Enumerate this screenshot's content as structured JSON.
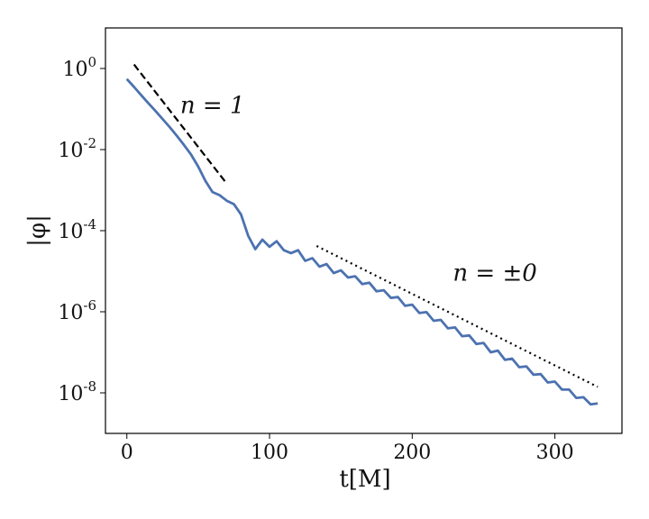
{
  "chart_data": {
    "type": "line",
    "title": "",
    "xlabel": "t[M]",
    "ylabel": "|φ|",
    "y_scale": "log",
    "grid": false,
    "xlim": [
      -15,
      347
    ],
    "ylim": [
      1e-09,
      10.0
    ],
    "x_ticks": [
      0,
      100,
      200,
      300
    ],
    "y_ticks": [
      {
        "value": 1,
        "base": "10",
        "exp": "0"
      },
      {
        "value": 0.01,
        "base": "10",
        "exp": "-2"
      },
      {
        "value": 0.0001,
        "base": "10",
        "exp": "-4"
      },
      {
        "value": 1e-06,
        "base": "10",
        "exp": "-6"
      },
      {
        "value": 1e-08,
        "base": "10",
        "exp": "-8"
      }
    ],
    "series": [
      {
        "style": "solid",
        "color": "#4c72b0",
        "x": [
          0,
          5,
          10,
          15,
          20,
          25,
          30,
          35,
          40,
          45,
          50,
          55,
          60,
          65,
          70,
          75,
          80,
          85,
          90,
          95,
          100,
          105,
          110,
          115,
          120,
          125,
          130,
          135,
          140,
          145,
          150,
          155,
          160,
          165,
          170,
          175,
          180,
          185,
          190,
          195,
          200,
          205,
          210,
          215,
          220,
          225,
          230,
          235,
          240,
          245,
          250,
          255,
          260,
          265,
          270,
          275,
          280,
          285,
          290,
          295,
          300,
          305,
          310,
          315,
          320,
          325,
          330
        ],
        "y": [
          0.55,
          0.35,
          0.22,
          0.14,
          0.09,
          0.057,
          0.036,
          0.022,
          0.013,
          0.0075,
          0.0038,
          0.0017,
          0.0009,
          0.00075,
          0.00055,
          0.00045,
          0.00025,
          7.5e-05,
          3.5e-05,
          6e-05,
          4e-05,
          5.5e-05,
          3.3e-05,
          2.8e-05,
          3.3e-05,
          1.8e-05,
          2.1e-05,
          1.3e-05,
          1.5e-05,
          9e-06,
          1.05e-05,
          7e-06,
          7.5e-06,
          4.8e-06,
          5.2e-06,
          3.2e-06,
          3.4e-06,
          2.2e-06,
          2.3e-06,
          1.4e-06,
          1.5e-06,
          9.3e-07,
          9.8e-07,
          6e-07,
          6.3e-07,
          3.9e-07,
          4.1e-07,
          2.5e-07,
          2.6e-07,
          1.6e-07,
          1.7e-07,
          1e-07,
          1.1e-07,
          6.5e-08,
          7e-08,
          4.3e-08,
          4.5e-08,
          2.8e-08,
          2.9e-08,
          1.8e-08,
          1.9e-08,
          1.2e-08,
          1.2e-08,
          7.5e-09,
          7.8e-09,
          5.2e-09,
          5.5e-09
        ]
      },
      {
        "style": "dashed",
        "color": "#000000",
        "x": [
          5,
          70
        ],
        "y": [
          1.25,
          0.00145
        ]
      },
      {
        "style": "dotted",
        "color": "#000000",
        "x": [
          133,
          330
        ],
        "y": [
          4.2e-05,
          1.4e-08
        ]
      }
    ],
    "annotations": [
      {
        "text": "n = 1",
        "x": 60,
        "y": 0.08
      },
      {
        "text": "n = ±0",
        "x": 258,
        "y": 5.8e-06
      }
    ]
  }
}
